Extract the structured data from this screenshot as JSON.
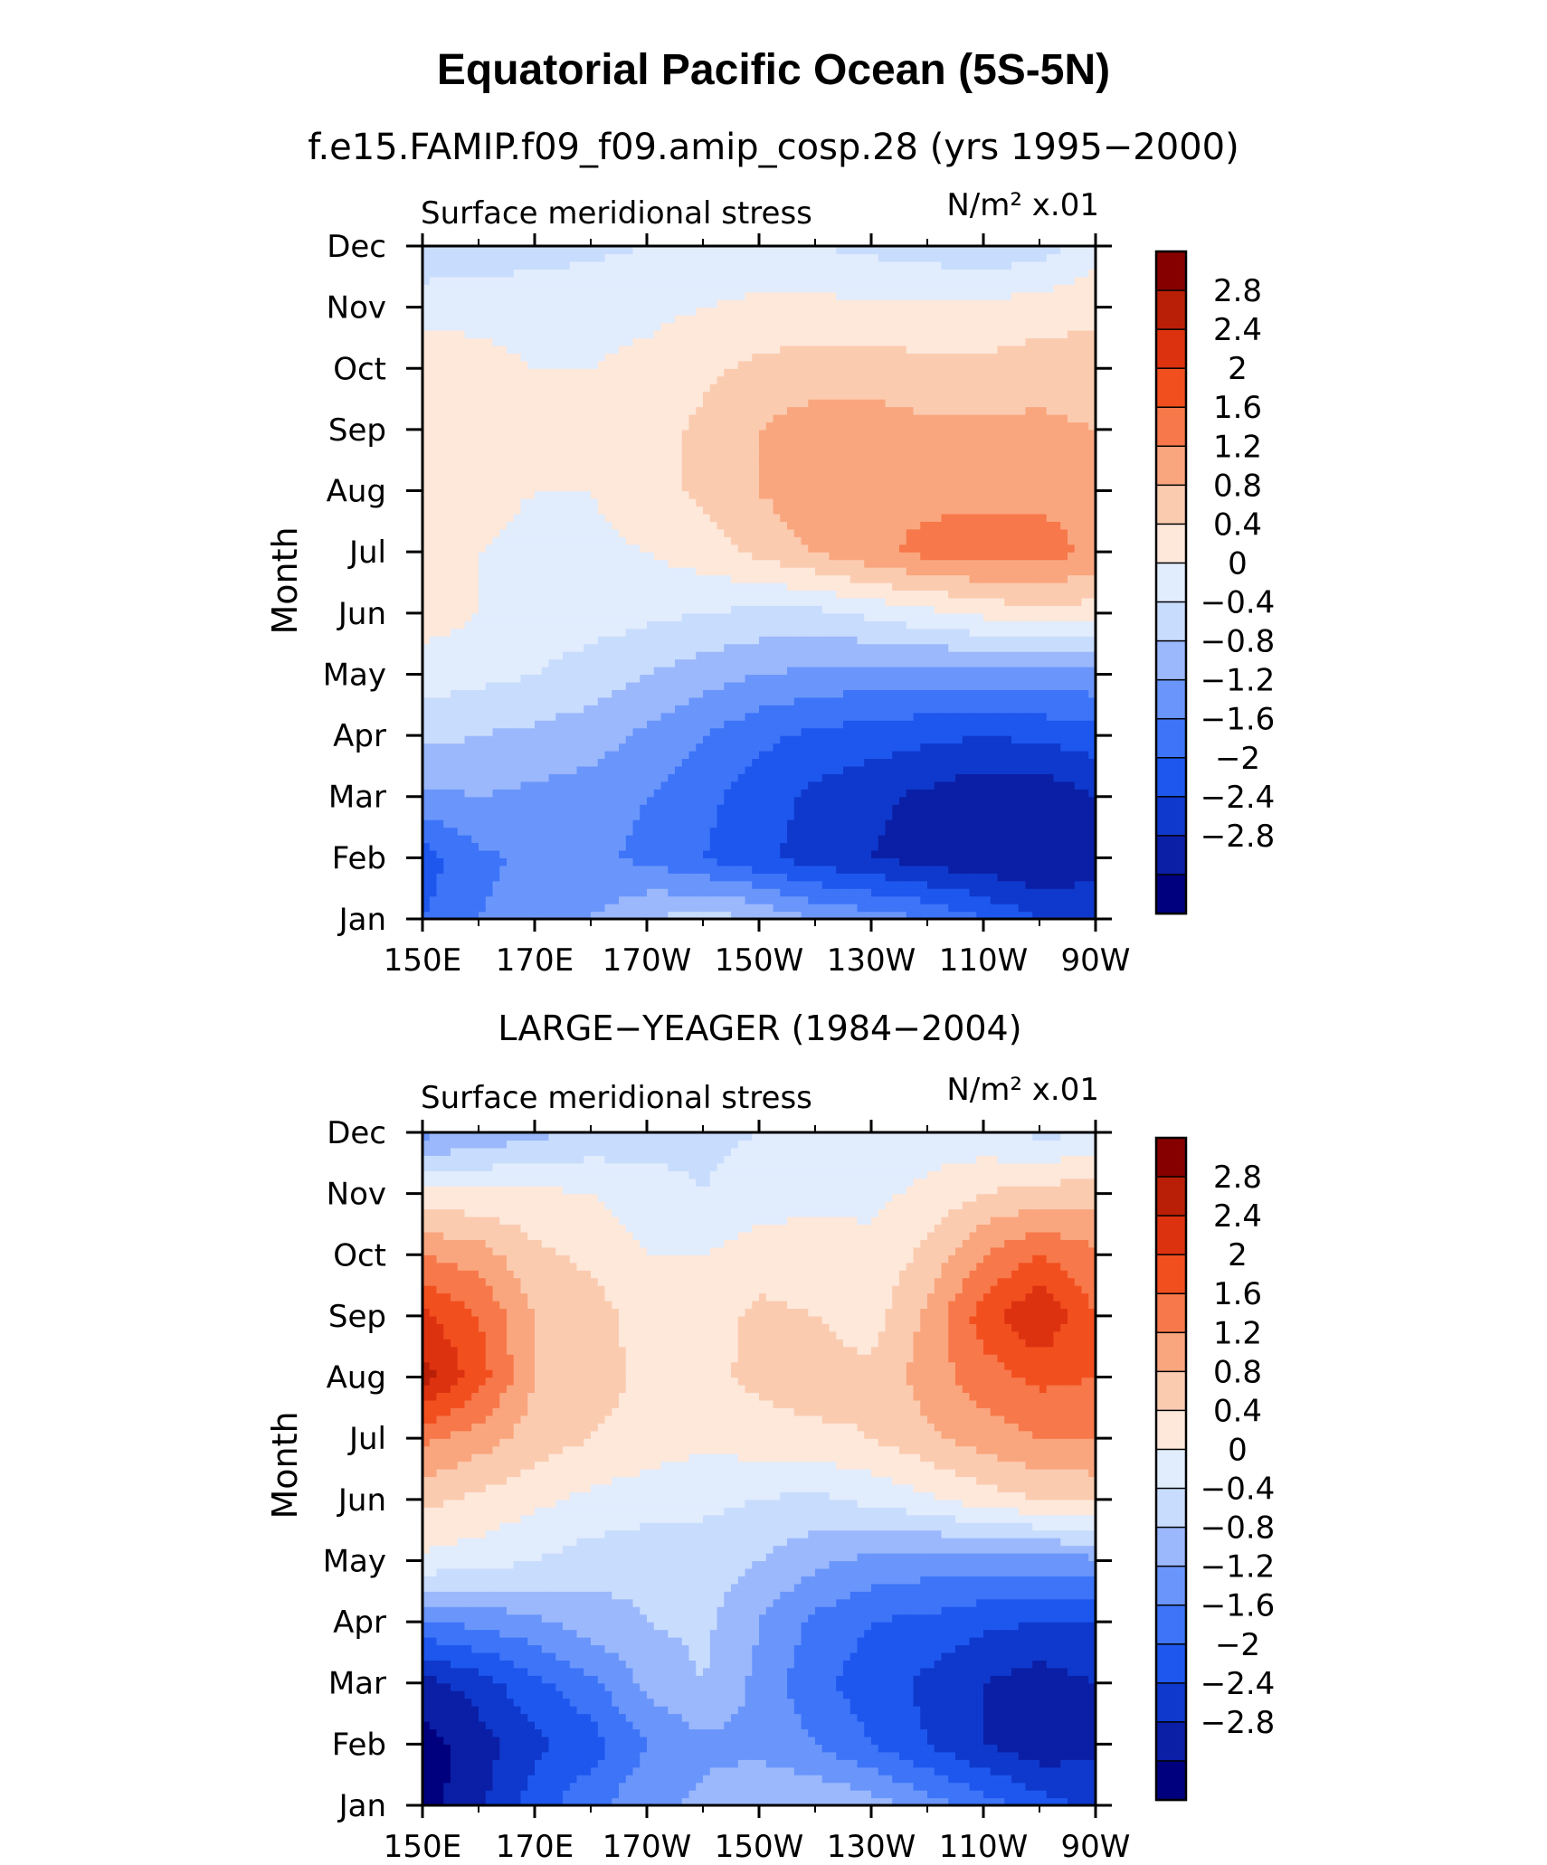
{
  "figure": {
    "title": "Equatorial Pacific Ocean (5S-5N)",
    "subtitle": "f.e15.FAMIP.f09_f09.amip_cosp.28 (yrs 1995−2000)"
  },
  "colors": {
    "levels": [
      -2.8,
      -2.4,
      -2.0,
      -1.6,
      -1.2,
      -0.8,
      -0.4,
      0,
      0.4,
      0.8,
      1.2,
      1.6,
      2.0,
      2.4,
      2.8
    ],
    "fill": [
      "#00007f",
      "#0a1fa5",
      "#0f39cc",
      "#1d57ee",
      "#3d74f8",
      "#6a96fb",
      "#9bb8fc",
      "#c8dcfd",
      "#e1ecfd",
      "#fde8da",
      "#fbcbb0",
      "#f9a67e",
      "#f7784a",
      "#f24f1f",
      "#dd3210",
      "#b91f06",
      "#870000"
    ]
  },
  "chart_data": [
    {
      "type": "heatmap",
      "title": "",
      "left_label": "Surface meridional stress",
      "right_label": "N/m² x.01",
      "ylabel": "Month",
      "xlabel": "",
      "x_ticks": [
        "150E",
        "170E",
        "170W",
        "150W",
        "130W",
        "110W",
        "90W"
      ],
      "x_values": [
        150,
        170,
        190,
        210,
        230,
        250,
        270
      ],
      "y_ticks": [
        "Jan",
        "Feb",
        "Mar",
        "Apr",
        "May",
        "Jun",
        "Jul",
        "Aug",
        "Sep",
        "Oct",
        "Nov",
        "Dec"
      ],
      "xlim": [
        150,
        270
      ],
      "ylim": [
        1,
        12
      ],
      "colorbar_labels": [
        "2.8",
        "2.4",
        "2",
        "1.6",
        "1.2",
        "0.8",
        "0.4",
        "0",
        "−0.4",
        "−0.8",
        "−1.2",
        "−1.6",
        "−2",
        "−2.4",
        "−2.8"
      ],
      "values": [
        [
          -1.6,
          -1.2,
          -1.0,
          -0.8,
          -0.4,
          -0.2,
          -0.4,
          -0.8,
          -1.0,
          -1.2,
          -1.6,
          -2.0,
          -2.2
        ],
        [
          -1.8,
          -1.3,
          -1.1,
          -1.1,
          -1.3,
          -1.6,
          -1.9,
          -2.2,
          -2.4,
          -2.6,
          -2.7,
          -2.8,
          -2.5
        ],
        [
          -0.9,
          -0.8,
          -0.9,
          -1.0,
          -1.2,
          -1.5,
          -1.8,
          -2.1,
          -2.3,
          -2.5,
          -2.7,
          -2.7,
          -2.4
        ],
        [
          -0.3,
          -0.4,
          -0.5,
          -0.6,
          -0.9,
          -1.2,
          -1.5,
          -1.7,
          -1.8,
          -1.9,
          -2.0,
          -1.9,
          -1.8
        ],
        [
          0.2,
          0.1,
          0.0,
          -0.2,
          -0.4,
          -0.6,
          -0.8,
          -0.9,
          -1.0,
          -1.0,
          -1.0,
          -1.0,
          -0.9
        ],
        [
          0.6,
          0.4,
          0.3,
          0.2,
          0.1,
          0.0,
          -0.1,
          -0.1,
          0.1,
          0.3,
          0.5,
          0.7,
          0.6
        ],
        [
          0.7,
          0.4,
          0.3,
          0.3,
          0.4,
          0.6,
          0.9,
          1.2,
          1.5,
          1.7,
          1.8,
          1.8,
          1.5
        ],
        [
          0.8,
          0.5,
          0.4,
          0.4,
          0.6,
          0.9,
          1.2,
          1.5,
          1.6,
          1.5,
          1.5,
          1.5,
          1.4
        ],
        [
          0.8,
          0.6,
          0.5,
          0.5,
          0.6,
          0.9,
          1.2,
          1.4,
          1.4,
          1.3,
          1.3,
          1.3,
          1.2
        ],
        [
          0.6,
          0.5,
          0.4,
          0.4,
          0.5,
          0.7,
          0.9,
          1.0,
          1.0,
          0.9,
          0.9,
          1.0,
          1.0
        ],
        [
          0.3,
          0.3,
          0.3,
          0.3,
          0.3,
          0.4,
          0.5,
          0.5,
          0.5,
          0.5,
          0.5,
          0.6,
          0.7
        ],
        [
          -0.4,
          -0.3,
          -0.2,
          -0.1,
          0.0,
          0.1,
          0.1,
          0.0,
          -0.1,
          -0.2,
          -0.3,
          -0.2,
          0.2
        ]
      ]
    },
    {
      "type": "heatmap",
      "title": "LARGE−YEAGER (1984−2004)",
      "left_label": "Surface meridional stress",
      "right_label": "N/m² x.01",
      "ylabel": "Month",
      "xlabel": "",
      "x_ticks": [
        "150E",
        "170E",
        "170W",
        "150W",
        "130W",
        "110W",
        "90W"
      ],
      "x_values": [
        150,
        170,
        190,
        210,
        230,
        250,
        270
      ],
      "y_ticks": [
        "Jan",
        "Feb",
        "Mar",
        "Apr",
        "May",
        "Jun",
        "Jul",
        "Aug",
        "Sep",
        "Oct",
        "Nov",
        "Dec"
      ],
      "xlim": [
        150,
        270
      ],
      "ylim": [
        1,
        12
      ],
      "colorbar_labels": [
        "2.8",
        "2.4",
        "2",
        "1.6",
        "1.2",
        "0.8",
        "0.4",
        "0",
        "−0.4",
        "−0.8",
        "−1.2",
        "−1.6",
        "−2",
        "−2.4",
        "−2.8"
      ],
      "values": [
        [
          -3.0,
          -2.5,
          -1.8,
          -1.3,
          -0.9,
          -0.7,
          -0.5,
          -0.4,
          -0.6,
          -1.0,
          -1.4,
          -1.8,
          -2.1
        ],
        [
          -3.0,
          -2.6,
          -2.1,
          -1.8,
          -1.2,
          -0.9,
          -0.9,
          -1.2,
          -1.6,
          -2.0,
          -2.4,
          -2.7,
          -2.5
        ],
        [
          -2.6,
          -2.2,
          -1.7,
          -1.3,
          -0.7,
          -0.4,
          -0.9,
          -1.5,
          -1.8,
          -2.1,
          -2.4,
          -2.6,
          -2.4
        ],
        [
          -1.2,
          -1.1,
          -0.9,
          -0.6,
          -0.4,
          -0.3,
          -0.8,
          -1.3,
          -1.6,
          -1.7,
          -1.9,
          -2.0,
          -2.0
        ],
        [
          0.3,
          0.2,
          0.0,
          -0.2,
          -0.3,
          -0.2,
          -0.4,
          -0.7,
          -0.9,
          -1.0,
          -1.0,
          -1.0,
          -0.9
        ],
        [
          0.9,
          0.7,
          0.5,
          0.3,
          0.2,
          0.1,
          0.0,
          -0.1,
          0.1,
          0.3,
          0.6,
          0.8,
          0.9
        ],
        [
          1.7,
          1.4,
          1.0,
          0.8,
          0.6,
          0.5,
          0.6,
          0.7,
          0.8,
          1.1,
          1.4,
          1.6,
          1.6
        ],
        [
          3.0,
          2.2,
          1.2,
          1.0,
          0.7,
          0.7,
          0.9,
          1.0,
          0.9,
          1.4,
          1.8,
          2.1,
          2.0
        ],
        [
          2.5,
          2.0,
          1.2,
          1.0,
          0.6,
          0.6,
          0.9,
          0.8,
          0.6,
          1.3,
          2.2,
          2.8,
          2.0
        ],
        [
          1.6,
          1.4,
          0.9,
          0.7,
          0.4,
          0.4,
          0.6,
          0.6,
          0.5,
          0.9,
          1.6,
          2.0,
          1.7
        ],
        [
          0.5,
          0.5,
          0.5,
          0.4,
          0.2,
          0.0,
          0.2,
          0.3,
          0.3,
          0.5,
          0.8,
          1.0,
          1.0
        ],
        [
          -0.9,
          -0.7,
          -0.5,
          -0.3,
          -0.2,
          -0.1,
          0.0,
          0.1,
          0.2,
          0.2,
          0.1,
          -0.1,
          0.0
        ]
      ]
    }
  ]
}
